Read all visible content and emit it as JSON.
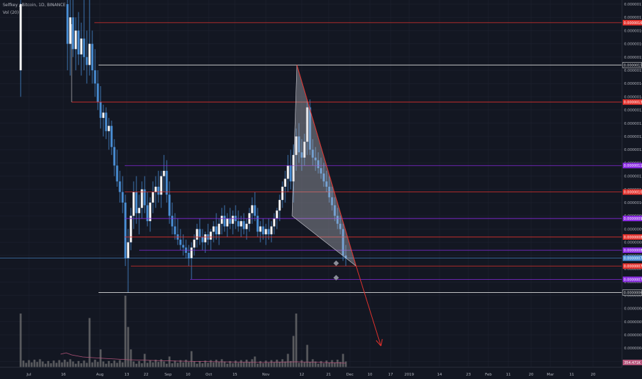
{
  "header": {
    "symbol_line": "Selfkey / Bitcoin, 1D, BINANCE",
    "indicator_line": "Vol (20)"
  },
  "colors": {
    "background": "#131722",
    "grid": "#1e2230",
    "axis_text": "#b2b5be",
    "candle": "#4a8fd6",
    "candle_hollow": "#ffffff",
    "red_line": "#e5322d",
    "purple_line": "#8a2be2",
    "white_line": "#e0e0e0",
    "volume": "#777777",
    "volume_ma": "#b4547a"
  },
  "price_axis": {
    "ticks": [
      "0.00000175",
      "0.00000170",
      "0.00000165",
      "0.00000160",
      "0.00000155",
      "0.00000150",
      "0.00000145",
      "0.00000140",
      "0.00000135",
      "0.00000130",
      "0.00000125",
      "0.00000120",
      "0.00000115",
      "0.00000110",
      "0.00000105",
      "0.00000100",
      "0.00000095",
      "0.00000090",
      "0.00000085",
      "0.00000080",
      "0.00000075",
      "0.00000070",
      "0.00000065",
      "0.00000060",
      "0.00000055",
      "0.00000050",
      "0.00000045",
      "0.00000040"
    ]
  },
  "levels": [
    {
      "label": "0.00000168",
      "value": 1.68e-06,
      "color": "#e5322d"
    },
    {
      "label": "0.00000152",
      "value": 1.52e-06,
      "color": "#e0e0e0"
    },
    {
      "label": "0.00000138",
      "value": 1.38e-06,
      "color": "#e5322d"
    },
    {
      "label": "0.00000114",
      "value": 1.14e-06,
      "color": "#8a2be2"
    },
    {
      "label": "0.00000104",
      "value": 1.04e-06,
      "color": "#e5322d"
    },
    {
      "label": "0.00000094",
      "value": 9.4e-07,
      "color": "#8a2be2"
    },
    {
      "label": "0.00000087",
      "value": 8.7e-07,
      "color": "#e5322d"
    },
    {
      "label": "0.00000082",
      "value": 8.2e-07,
      "color": "#8a2be2"
    },
    {
      "label": "0.00000079",
      "value": 7.9e-07,
      "color": "#4a8fd6"
    },
    {
      "label": "0.00000076",
      "value": 7.6e-07,
      "color": "#e5322d"
    },
    {
      "label": "0.00000071",
      "value": 7.1e-07,
      "color": "#8a2be2"
    },
    {
      "label": "0.00000066",
      "value": 6.6e-07,
      "color": "#e0e0e0"
    }
  ],
  "volume_badge": {
    "label": "354.471K",
    "color": "#b4547a"
  },
  "time_axis": {
    "labels": [
      "Jul",
      "16",
      "Aug",
      "13",
      "22",
      "Sep",
      "10",
      "Oct",
      "15",
      "Nov",
      "12",
      "21",
      "Dec",
      "10",
      "17",
      "2019",
      "14",
      "23",
      "Feb",
      "11",
      "20",
      "Mar",
      "11",
      "20"
    ]
  }
}
